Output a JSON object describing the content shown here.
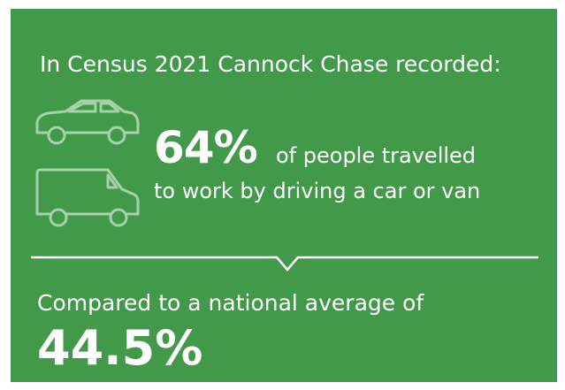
{
  "heading": "In Census 2021 Cannock Chase recorded:",
  "stat": {
    "value": "64%",
    "line1": "of people travelled",
    "line2": "to work by driving a car or van"
  },
  "comparison": {
    "text": "Compared to a national average of",
    "value": "44.5%"
  }
}
